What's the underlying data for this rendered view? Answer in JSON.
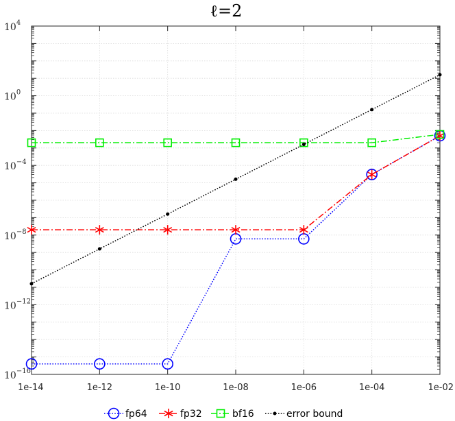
{
  "chart_data": {
    "type": "line",
    "title": "ℓ=2",
    "x_scale": "log",
    "y_scale": "log",
    "x": [
      1e-14,
      1e-12,
      1e-10,
      1e-08,
      1e-06,
      0.0001,
      0.01
    ],
    "x_tick_labels": [
      "1e-14",
      "1e-12",
      "1e-10",
      "1e-08",
      "1e-06",
      "1e-04",
      "1e-02"
    ],
    "xlim": [
      1e-14,
      0.01
    ],
    "ylim": [
      1e-16,
      10000.0
    ],
    "y_ticks": [
      {
        "mantissa": "10",
        "exponent": "4",
        "value": 10000.0
      },
      {
        "mantissa": "10",
        "exponent": "0",
        "value": 1
      },
      {
        "mantissa": "10",
        "exponent": "−4",
        "value": 0.0001
      },
      {
        "mantissa": "10",
        "exponent": "−8",
        "value": 1e-08
      },
      {
        "mantissa": "10",
        "exponent": "−12",
        "value": 1e-12
      },
      {
        "mantissa": "10",
        "exponent": "−16",
        "value": 1e-16
      }
    ],
    "grid": true,
    "legend_position": "bottom",
    "series": [
      {
        "name": "fp64",
        "color": "#0000ff",
        "line": "dotted",
        "marker": "circle",
        "values": [
          4e-16,
          4e-16,
          4e-16,
          6e-09,
          6e-09,
          3e-05,
          0.005
        ]
      },
      {
        "name": "fp32",
        "color": "#ff0000",
        "line": "dashdot",
        "marker": "asterisk",
        "values": [
          2e-08,
          2e-08,
          2e-08,
          2e-08,
          2e-08,
          3e-05,
          0.005
        ]
      },
      {
        "name": "bf16",
        "color": "#00ee00",
        "line": "dashdot",
        "marker": "square",
        "values": [
          0.002,
          0.002,
          0.002,
          0.002,
          0.002,
          0.002,
          0.006
        ]
      },
      {
        "name": "error bound",
        "color": "#000000",
        "line": "dotted",
        "marker": "dot",
        "values": [
          1.6e-11,
          1.6e-09,
          1.6e-07,
          1.6e-05,
          0.0016,
          0.16,
          16
        ]
      }
    ]
  }
}
